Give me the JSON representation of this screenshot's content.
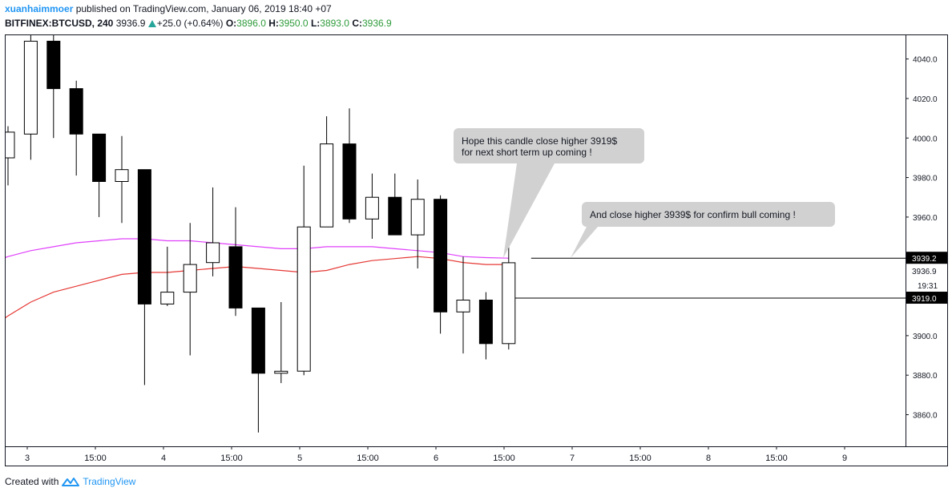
{
  "header": {
    "author": "xuanhaimmoer",
    "published_text": "published on TradingView.com, January 06, 2019 18:40 +07",
    "symbol": "BITFINEX:BTCUSD, 240",
    "last": "3936.9",
    "change": "+25.0 (+0.64%)",
    "o_label": "O:",
    "o_value": "3896.0",
    "h_label": "H:",
    "h_value": "3950.0",
    "l_label": "L:",
    "l_value": "3893.0",
    "c_label": "C:",
    "c_value": "3936.9"
  },
  "footer": {
    "created_with": "Created with",
    "brand": "TradingView"
  },
  "colors": {
    "up_fill": "#ffffff",
    "down_fill": "#000000",
    "ma_fast": "#e040fb",
    "ma_slow": "#e53935",
    "brand": "#2196f3",
    "callout": "#d1d1d1"
  },
  "chart_data": {
    "type": "candlestick",
    "title": "BITFINEX:BTCUSD, 240",
    "ylim": [
      3844,
      4052
    ],
    "y_ticks": [
      4040,
      4020,
      4000,
      3980,
      3960,
      3900,
      3880,
      3860
    ],
    "x_labels": [
      "3",
      "15:00",
      "4",
      "15:00",
      "5",
      "15:00",
      "6",
      "15:00",
      "7",
      "15:00",
      "8",
      "15:00",
      "9"
    ],
    "candles": [
      {
        "o": 3990,
        "h": 4006,
        "l": 3976,
        "c": 4003
      },
      {
        "o": 4002,
        "h": 4056,
        "l": 3989,
        "c": 4049
      },
      {
        "o": 4049,
        "h": 4052,
        "l": 4000,
        "c": 4025
      },
      {
        "o": 4025,
        "h": 4029,
        "l": 3981,
        "c": 4002
      },
      {
        "o": 4002,
        "h": 4002,
        "l": 3960,
        "c": 3978
      },
      {
        "o": 3978,
        "h": 4001,
        "l": 3957,
        "c": 3984
      },
      {
        "o": 3984,
        "h": 3984,
        "l": 3875,
        "c": 3916
      },
      {
        "o": 3916,
        "h": 3945,
        "l": 3915,
        "c": 3922
      },
      {
        "o": 3922,
        "h": 3957,
        "l": 3890,
        "c": 3936
      },
      {
        "o": 3937,
        "h": 3975,
        "l": 3930,
        "c": 3947
      },
      {
        "o": 3945,
        "h": 3965,
        "l": 3910,
        "c": 3914
      },
      {
        "o": 3914,
        "h": 3914,
        "l": 3851,
        "c": 3881
      },
      {
        "o": 3881,
        "h": 3917,
        "l": 3876,
        "c": 3882
      },
      {
        "o": 3882,
        "h": 3986,
        "l": 3880,
        "c": 3955
      },
      {
        "o": 3955,
        "h": 4011,
        "l": 3955,
        "c": 3997
      },
      {
        "o": 3997,
        "h": 4015,
        "l": 3957,
        "c": 3959
      },
      {
        "o": 3959,
        "h": 3982,
        "l": 3949,
        "c": 3970
      },
      {
        "o": 3970,
        "h": 3982,
        "l": 3951,
        "c": 3951
      },
      {
        "o": 3951,
        "h": 3979,
        "l": 3934,
        "c": 3969
      },
      {
        "o": 3969,
        "h": 3971,
        "l": 3901,
        "c": 3912
      },
      {
        "o": 3912,
        "h": 3940,
        "l": 3891,
        "c": 3918
      },
      {
        "o": 3918,
        "h": 3922,
        "l": 3888,
        "c": 3896
      },
      {
        "o": 3896,
        "h": 3950,
        "l": 3893,
        "c": 3936.9
      }
    ],
    "series": [
      {
        "values": [
          3940,
          3943,
          3945,
          3947,
          3948,
          3949,
          3949,
          3948,
          3948,
          3947,
          3946,
          3945,
          3944,
          3944,
          3945,
          3945,
          3945,
          3944,
          3943,
          3942,
          3940,
          3939.5,
          3939.2
        ]
      },
      {
        "values": [
          3910,
          3917,
          3922,
          3925,
          3928,
          3931,
          3932,
          3932,
          3933,
          3934,
          3935,
          3934,
          3933,
          3932,
          3933,
          3936,
          3938,
          3939,
          3940,
          3939,
          3937,
          3936,
          3936
        ]
      }
    ],
    "price_labels": {
      "ma_value": "3939.2",
      "last_value": "3936.9",
      "countdown": "19:31",
      "line_value": "3919.0"
    },
    "horizontal_lines": [
      3939.2,
      3919.0
    ],
    "annotations": [
      {
        "lines": [
          "Hope this candle close higher 3919$",
          "for next short term up coming !"
        ]
      },
      {
        "lines": [
          "And close higher 3939$ for confirm bull coming !"
        ]
      }
    ]
  }
}
